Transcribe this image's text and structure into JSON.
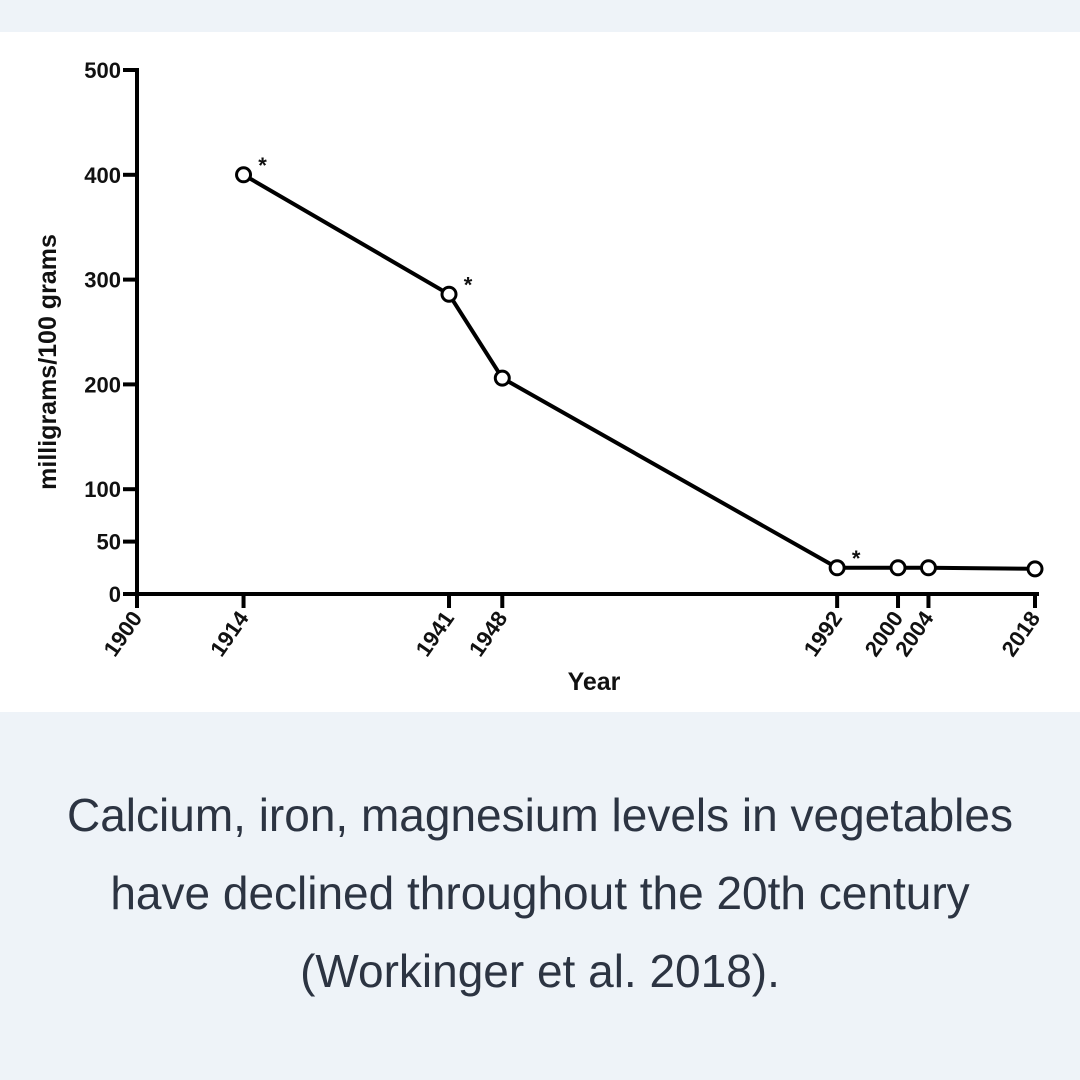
{
  "caption": "Calcium, iron, magnesium levels in vegetables have declined throughout the 20th century (Workinger et al. 2018).",
  "chart_data": {
    "type": "line",
    "xlabel": "Year",
    "ylabel": "milligrams/100 grams",
    "x_ticks": [
      1900,
      1914,
      1941,
      1948,
      1992,
      2000,
      2004,
      2018
    ],
    "y_ticks": [
      0,
      50,
      100,
      200,
      300,
      400,
      500
    ],
    "xlim": [
      1900,
      2018
    ],
    "ylim": [
      0,
      500
    ],
    "grid": false,
    "series": [
      {
        "x": [
          1914,
          1941,
          1948,
          1992,
          2000,
          2004,
          2018
        ],
        "values": [
          400,
          286,
          206,
          25,
          25,
          25,
          24
        ]
      }
    ],
    "annotations": [
      {
        "x": 1914,
        "text": "*"
      },
      {
        "x": 1941,
        "text": "*"
      },
      {
        "x": 1992,
        "text": "*"
      }
    ]
  }
}
